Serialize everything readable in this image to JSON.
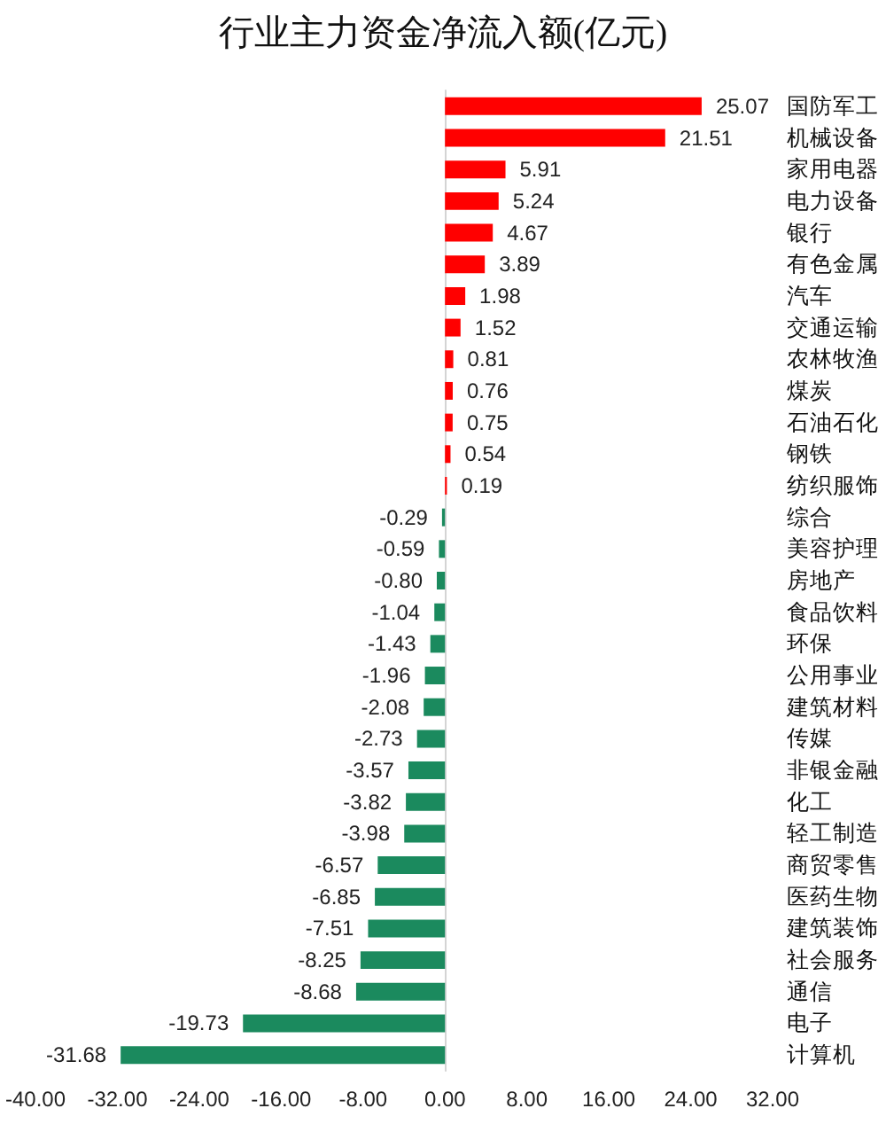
{
  "chart_data": {
    "type": "bar",
    "title": "行业主力资金净流入额(亿元)",
    "orientation": "horizontal",
    "categories": [
      "国防军工",
      "机械设备",
      "家用电器",
      "电力设备",
      "银行",
      "有色金属",
      "汽车",
      "交通运输",
      "农林牧渔",
      "煤炭",
      "石油石化",
      "钢铁",
      "纺织服饰",
      "综合",
      "美容护理",
      "房地产",
      "食品饮料",
      "环保",
      "公用事业",
      "建筑材料",
      "传媒",
      "非银金融",
      "化工",
      "轻工制造",
      "商贸零售",
      "医药生物",
      "建筑装饰",
      "社会服务",
      "通信",
      "电子",
      "计算机"
    ],
    "values": [
      25.07,
      21.51,
      5.91,
      5.24,
      4.67,
      3.89,
      1.98,
      1.52,
      0.81,
      0.76,
      0.75,
      0.54,
      0.19,
      -0.29,
      -0.59,
      -0.8,
      -1.04,
      -1.43,
      -1.96,
      -2.08,
      -2.73,
      -3.57,
      -3.82,
      -3.98,
      -6.57,
      -6.85,
      -7.51,
      -8.25,
      -8.68,
      -19.73,
      -31.68
    ],
    "value_labels": [
      "25.07",
      "21.51",
      "5.91",
      "5.24",
      "4.67",
      "3.89",
      "1.98",
      "1.52",
      "0.81",
      "0.76",
      "0.75",
      "0.54",
      "0.19",
      "-0.29",
      "-0.59",
      "-0.80",
      "-1.04",
      "-1.43",
      "-1.96",
      "-2.08",
      "-2.73",
      "-3.57",
      "-3.82",
      "-3.98",
      "-6.57",
      "-6.85",
      "-7.51",
      "-8.25",
      "-8.68",
      "-19.73",
      "-31.68"
    ],
    "colors": [
      "#ff0000",
      "#ff0000",
      "#ff0000",
      "#ff0000",
      "#ff0000",
      "#ff0000",
      "#ff0000",
      "#ff0000",
      "#ff0000",
      "#ff0000",
      "#ff0000",
      "#ff0000",
      "#ff0000",
      "#1b8a5e",
      "#1b8a5e",
      "#1b8a5e",
      "#1b8a5e",
      "#1b8a5e",
      "#1b8a5e",
      "#1b8a5e",
      "#1b8a5e",
      "#1b8a5e",
      "#1b8a5e",
      "#1b8a5e",
      "#1b8a5e",
      "#1b8a5e",
      "#1b8a5e",
      "#1b8a5e",
      "#1b8a5e",
      "#1b8a5e",
      "#1b8a5e"
    ],
    "xlim": [
      -40,
      32
    ],
    "xticks": [
      {
        "value": -40,
        "label": "-40.00"
      },
      {
        "value": -32,
        "label": "-32.00"
      },
      {
        "value": -24,
        "label": "-24.00"
      },
      {
        "value": -16,
        "label": "-16.00"
      },
      {
        "value": -8,
        "label": "-8.00"
      },
      {
        "value": 0,
        "label": "0.00"
      },
      {
        "value": 8,
        "label": "8.00"
      },
      {
        "value": 16,
        "label": "16.00"
      },
      {
        "value": 24,
        "label": "24.00"
      },
      {
        "value": 32,
        "label": "32.00"
      }
    ]
  }
}
